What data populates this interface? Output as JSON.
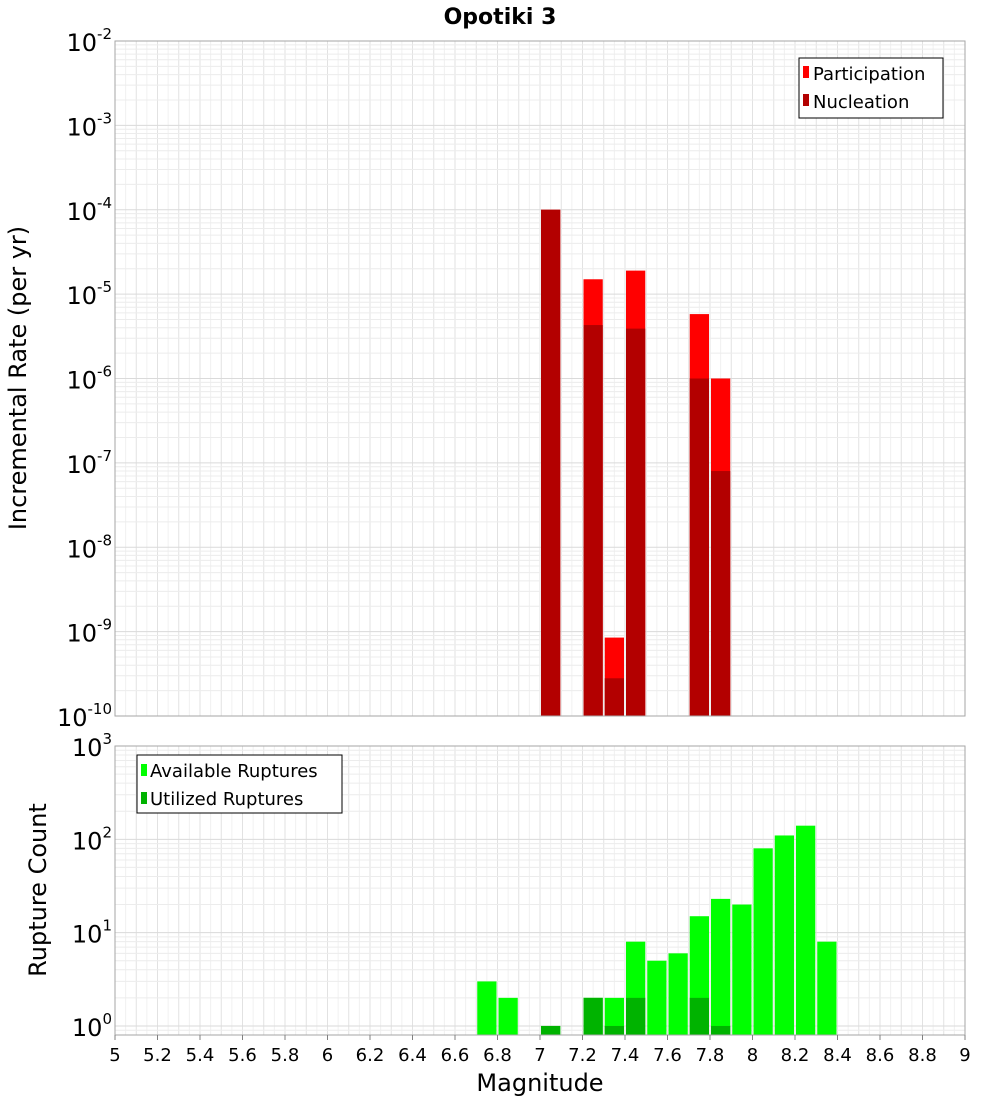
{
  "chart_data": [
    {
      "type": "bar",
      "title": "Opotiki 3",
      "xlabel": "",
      "ylabel": "Incremental Rate (per yr)",
      "xlim": [
        5,
        9
      ],
      "ylim": [
        1e-10,
        0.01
      ],
      "yscale": "log",
      "grid": true,
      "legend": "top-right",
      "ytick_labels": [
        {
          "base": "10",
          "exp": "-10",
          "value": 1e-10
        },
        {
          "base": "10",
          "exp": "-9",
          "value": 1e-09
        },
        {
          "base": "10",
          "exp": "-8",
          "value": 1e-08
        },
        {
          "base": "10",
          "exp": "-7",
          "value": 1e-07
        },
        {
          "base": "10",
          "exp": "-6",
          "value": 1e-06
        },
        {
          "base": "10",
          "exp": "-5",
          "value": 1e-05
        },
        {
          "base": "10",
          "exp": "-4",
          "value": 0.0001
        },
        {
          "base": "10",
          "exp": "-3",
          "value": 0.001
        },
        {
          "base": "10",
          "exp": "-2",
          "value": 0.01
        }
      ],
      "series": [
        {
          "name": "Participation",
          "color": "#ff0000",
          "points": [
            {
              "x": 7.05,
              "y": 0.0001
            },
            {
              "x": 7.25,
              "y": 1.5e-05
            },
            {
              "x": 7.35,
              "y": 8.5e-10
            },
            {
              "x": 7.45,
              "y": 1.9e-05
            },
            {
              "x": 7.75,
              "y": 5.8e-06
            },
            {
              "x": 7.85,
              "y": 1e-06
            }
          ]
        },
        {
          "name": "Nucleation",
          "color": "#b30000",
          "points": [
            {
              "x": 7.05,
              "y": 0.0001
            },
            {
              "x": 7.25,
              "y": 4.3e-06
            },
            {
              "x": 7.35,
              "y": 2.8e-10
            },
            {
              "x": 7.45,
              "y": 3.9e-06
            },
            {
              "x": 7.75,
              "y": 1e-06
            },
            {
              "x": 7.85,
              "y": 8e-08
            }
          ]
        }
      ]
    },
    {
      "type": "bar",
      "title": "",
      "xlabel": "Magnitude",
      "ylabel": "Rupture Count",
      "xlim": [
        5,
        9
      ],
      "ylim": [
        0.8,
        1000
      ],
      "yscale": "log",
      "grid": true,
      "legend": "top-left",
      "xtick_labels": [
        "5",
        "5.2",
        "5.4",
        "5.6",
        "5.8",
        "6",
        "6.2",
        "6.4",
        "6.6",
        "6.8",
        "7",
        "7.2",
        "7.4",
        "7.6",
        "7.8",
        "8",
        "8.2",
        "8.4",
        "8.6",
        "8.8",
        "9"
      ],
      "ytick_labels": [
        {
          "base": "10",
          "exp": "0",
          "value": 1
        },
        {
          "base": "10",
          "exp": "1",
          "value": 10
        },
        {
          "base": "10",
          "exp": "2",
          "value": 100
        },
        {
          "base": "10",
          "exp": "3",
          "value": 1000
        }
      ],
      "series": [
        {
          "name": "Available Ruptures",
          "color": "#00ff00",
          "points": [
            {
              "x": 6.75,
              "y": 3
            },
            {
              "x": 6.85,
              "y": 2
            },
            {
              "x": 7.05,
              "y": 1
            },
            {
              "x": 7.25,
              "y": 2
            },
            {
              "x": 7.35,
              "y": 2
            },
            {
              "x": 7.45,
              "y": 8
            },
            {
              "x": 7.55,
              "y": 5
            },
            {
              "x": 7.65,
              "y": 6
            },
            {
              "x": 7.75,
              "y": 15
            },
            {
              "x": 7.85,
              "y": 23
            },
            {
              "x": 7.95,
              "y": 20
            },
            {
              "x": 8.05,
              "y": 80
            },
            {
              "x": 8.15,
              "y": 110
            },
            {
              "x": 8.25,
              "y": 140
            },
            {
              "x": 8.35,
              "y": 8
            }
          ]
        },
        {
          "name": "Utilized Ruptures",
          "color": "#00b300",
          "points": [
            {
              "x": 7.05,
              "y": 1
            },
            {
              "x": 7.25,
              "y": 2
            },
            {
              "x": 7.35,
              "y": 1
            },
            {
              "x": 7.45,
              "y": 2
            },
            {
              "x": 7.75,
              "y": 2
            },
            {
              "x": 7.85,
              "y": 1
            }
          ]
        }
      ]
    }
  ]
}
